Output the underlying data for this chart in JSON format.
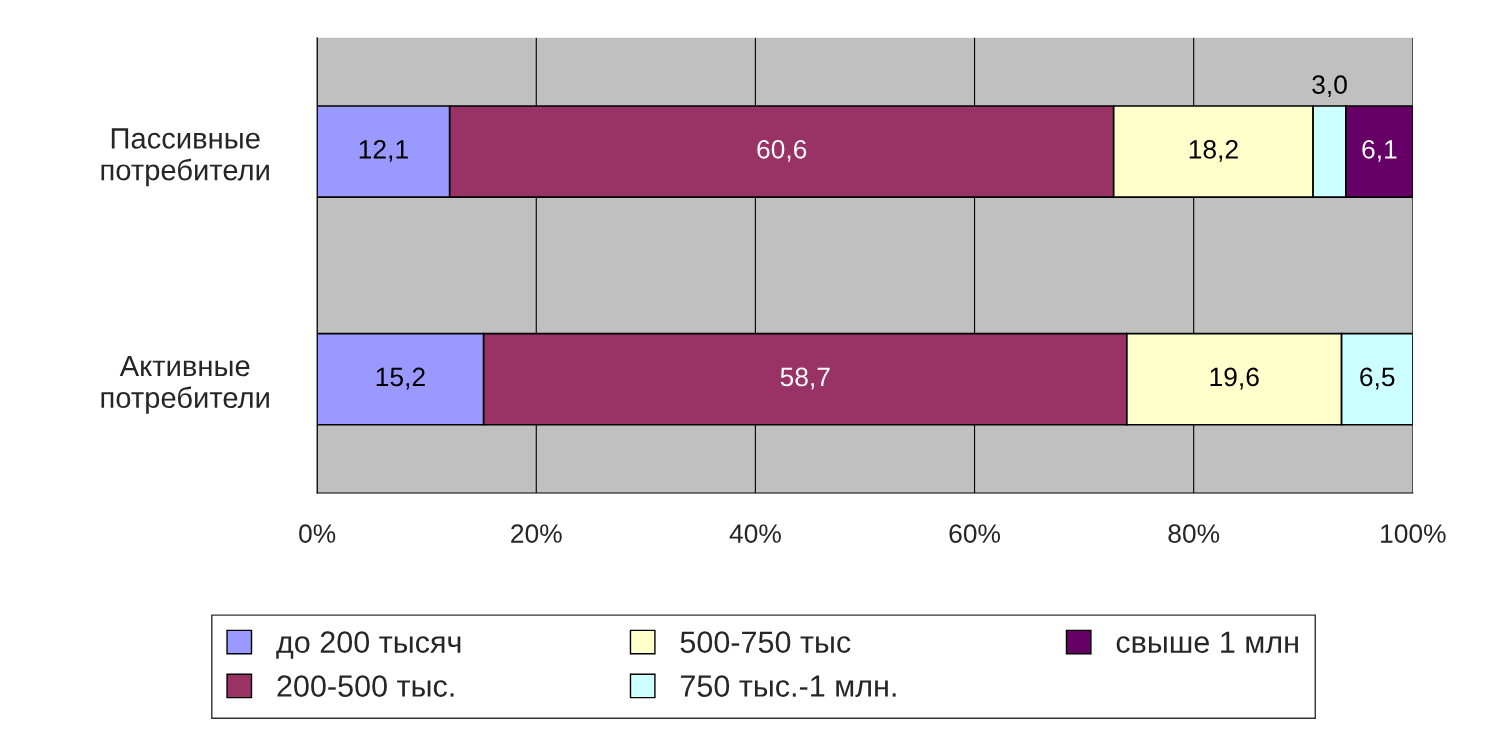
{
  "chart_data": {
    "type": "bar",
    "orientation": "horizontal",
    "stacked": true,
    "categories": [
      "Пассивные\nпотребители",
      "Активные\nпотребители"
    ],
    "series": [
      {
        "name": "до 200 тысяч",
        "color": "#9999ff",
        "values": [
          12.1,
          15.2
        ],
        "value_labels": [
          "12,1",
          "15,2"
        ]
      },
      {
        "name": "200-500 тыс.",
        "color": "#993366",
        "values": [
          60.6,
          58.7
        ],
        "value_labels": [
          "60,6",
          "58,7"
        ]
      },
      {
        "name": "500-750 тыс",
        "color": "#ffffcc",
        "values": [
          18.2,
          19.6
        ],
        "value_labels": [
          "18,2",
          "19,6"
        ]
      },
      {
        "name": "750 тыс.-1 млн.",
        "color": "#ccffff",
        "values": [
          3.0,
          6.5
        ],
        "value_labels": [
          "3,0",
          "6,5"
        ]
      },
      {
        "name": "свыше 1 млн",
        "color": "#660066",
        "values": [
          6.1,
          null
        ],
        "value_labels": [
          "6,1",
          null
        ]
      }
    ],
    "xlim": [
      0,
      100
    ],
    "xticks": [
      {
        "value": 0,
        "label": "0%"
      },
      {
        "value": 20,
        "label": "20%"
      },
      {
        "value": 40,
        "label": "40%"
      },
      {
        "value": 60,
        "label": "60%"
      },
      {
        "value": 80,
        "label": "80%"
      },
      {
        "value": 100,
        "label": "100%"
      }
    ],
    "grid": "x",
    "legend": "bottom"
  }
}
